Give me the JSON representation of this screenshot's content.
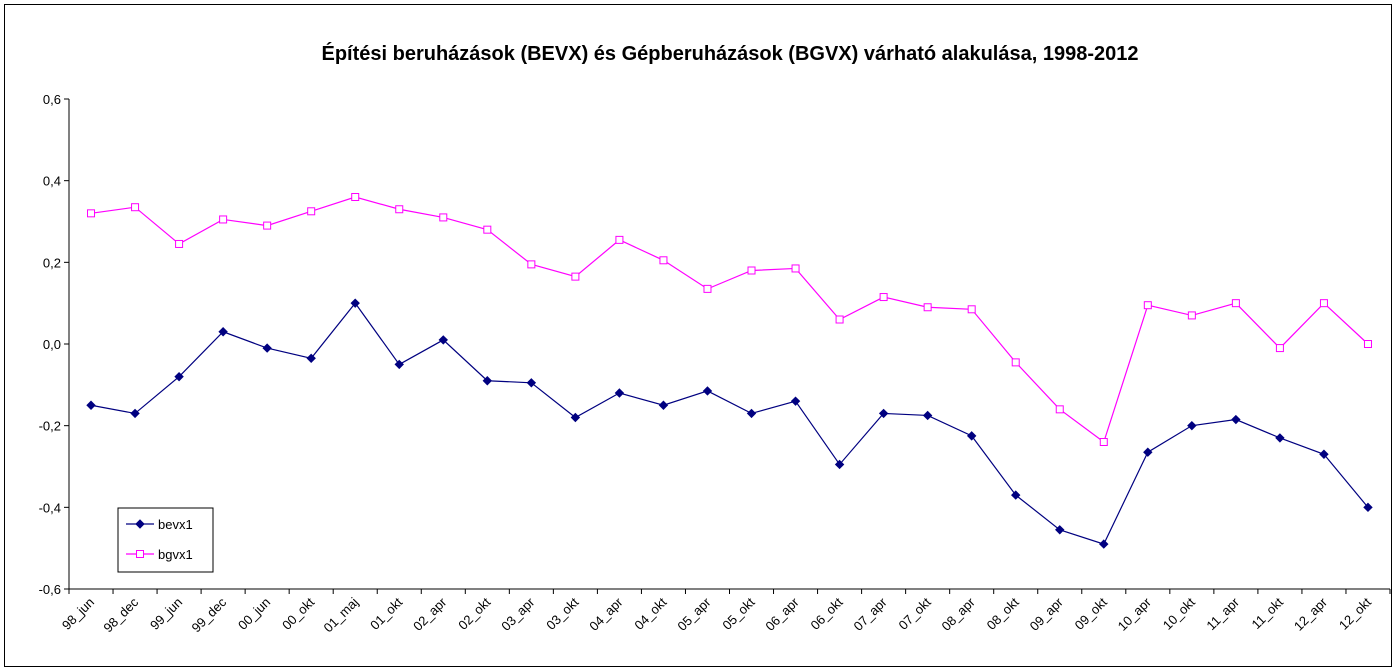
{
  "chart_data": {
    "type": "line",
    "title": "Építési beruházások (BEVX) és Gépberuházások (BGVX) várható alakulása, 1998-2012",
    "categories": [
      "98_jun",
      "98_dec",
      "99_jun",
      "99_dec",
      "00_jun",
      "00_okt",
      "01_maj",
      "01_okt",
      "02_apr",
      "02_okt",
      "03_apr",
      "03_okt",
      "04_apr",
      "04_okt",
      "05_apr",
      "05_okt",
      "06_apr",
      "06_okt",
      "07_apr",
      "07_okt",
      "08_apr",
      "08_okt",
      "09_apr",
      "09_okt",
      "10_apr",
      "10_okt",
      "11_apr",
      "11_okt",
      "12_apr",
      "12_okt"
    ],
    "series": [
      {
        "name": "bevx1",
        "color": "#000080",
        "marker": "diamond",
        "values": [
          -0.15,
          -0.17,
          -0.08,
          0.03,
          -0.01,
          -0.035,
          0.1,
          -0.05,
          0.01,
          -0.09,
          -0.095,
          -0.18,
          -0.12,
          -0.15,
          -0.115,
          -0.17,
          -0.14,
          -0.295,
          -0.17,
          -0.175,
          -0.225,
          -0.37,
          -0.455,
          -0.49,
          -0.265,
          -0.2,
          -0.185,
          -0.23,
          -0.27,
          -0.4
        ]
      },
      {
        "name": "bgvx1",
        "color": "#ff00ff",
        "marker": "square",
        "values": [
          0.32,
          0.335,
          0.245,
          0.305,
          0.29,
          0.325,
          0.36,
          0.33,
          0.31,
          0.28,
          0.195,
          0.165,
          0.255,
          0.205,
          0.135,
          0.18,
          0.185,
          0.06,
          0.115,
          0.09,
          0.085,
          -0.045,
          -0.16,
          -0.24,
          0.095,
          0.07,
          0.1,
          -0.01,
          0.1,
          0.0
        ]
      }
    ],
    "ylim": [
      -0.6,
      0.6
    ],
    "yticks": [
      {
        "value": -0.6,
        "label": "-0,6"
      },
      {
        "value": -0.4,
        "label": "-0,4"
      },
      {
        "value": -0.2,
        "label": "-0,2"
      },
      {
        "value": 0,
        "label": "0,0"
      },
      {
        "value": 0.2,
        "label": "0,2"
      },
      {
        "value": 0.4,
        "label": "0,4"
      },
      {
        "value": 0.6,
        "label": "0,6"
      }
    ],
    "grid": false,
    "legend": "lower left"
  }
}
